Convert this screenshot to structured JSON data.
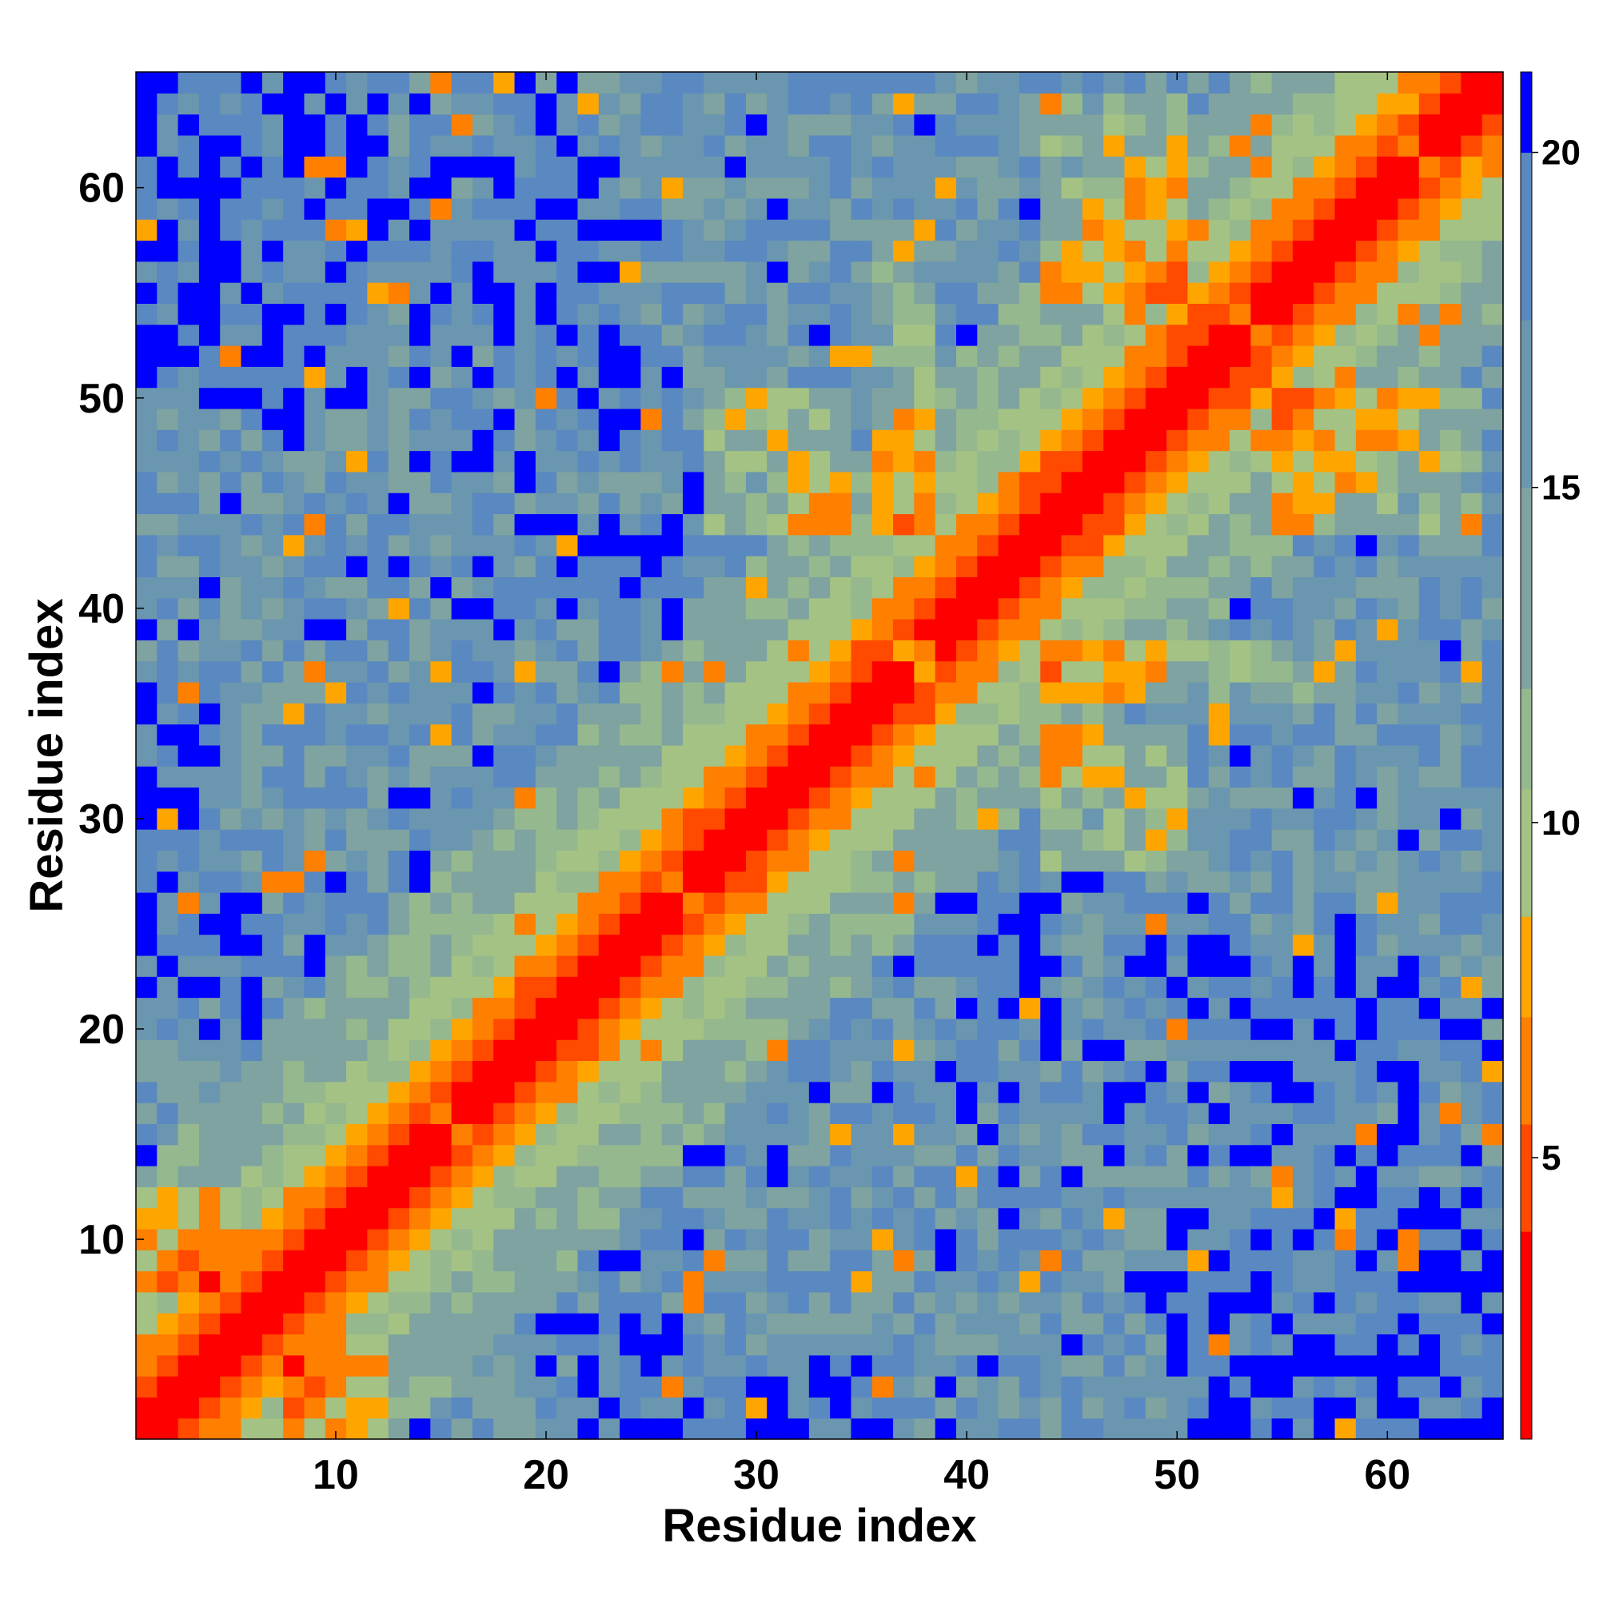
{
  "chart_data": {
    "type": "heatmap",
    "title": "",
    "xlabel": "Residue index",
    "ylabel": "Residue index",
    "n_residues": 65,
    "xlim": [
      0.5,
      65.5
    ],
    "ylim": [
      0.5,
      65.5
    ],
    "xticks": [
      10,
      20,
      30,
      40,
      50,
      60
    ],
    "yticks": [
      10,
      20,
      30,
      40,
      50,
      60
    ],
    "grid": false,
    "colorbar": {
      "placement": "right",
      "min": 0.8,
      "max": 21.2,
      "ticks": [
        5,
        10,
        15,
        20
      ],
      "bands": [
        {
          "from": 0.8,
          "to": 3.9,
          "color": "#ff0000"
        },
        {
          "from": 3.9,
          "to": 5.5,
          "color": "#ff4a00"
        },
        {
          "from": 5.5,
          "to": 7.1,
          "color": "#ff7f00"
        },
        {
          "from": 7.1,
          "to": 8.6,
          "color": "#ffa500"
        },
        {
          "from": 8.6,
          "to": 10.5,
          "color": "#a4c283"
        },
        {
          "from": 10.5,
          "to": 12.0,
          "color": "#95b88e"
        },
        {
          "from": 12.0,
          "to": 15.0,
          "color": "#7ea3a0"
        },
        {
          "from": 15.0,
          "to": 17.5,
          "color": "#6a96b0"
        },
        {
          "from": 17.5,
          "to": 20.0,
          "color": "#5a88c0"
        },
        {
          "from": 20.0,
          "to": 21.2,
          "color": "#0000ff"
        }
      ]
    },
    "values_description": "symmetric inter-residue distance matrix"
  }
}
